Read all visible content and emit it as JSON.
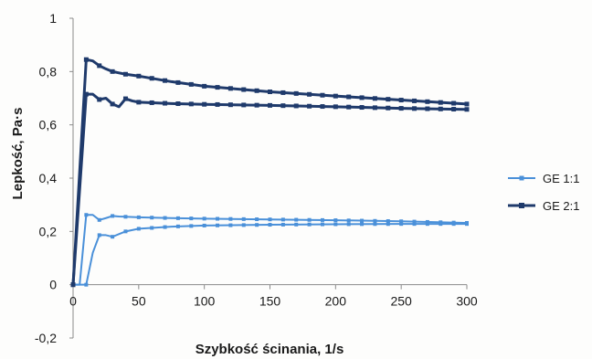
{
  "chart_data": {
    "type": "line",
    "xlabel": "Szybkość ścinania, 1/s",
    "ylabel": "Lepkość, Pa·s",
    "xlim": [
      0,
      300
    ],
    "ylim": [
      -0.2,
      1
    ],
    "x_ticks": [
      0,
      50,
      100,
      150,
      200,
      250,
      300
    ],
    "x_tick_labels": [
      "0",
      "50",
      "100",
      "150",
      "200",
      "250",
      "300"
    ],
    "y_ticks": [
      -0.2,
      0,
      0.2,
      0.4,
      0.6,
      0.8,
      1
    ],
    "y_tick_labels": [
      "-0,2",
      "0",
      "0,2",
      "0,4",
      "0,6",
      "0,8",
      "1"
    ],
    "grid": false,
    "legend_position": "right",
    "series": [
      {
        "name": "GE 1:1",
        "color": "#4a90d9",
        "curves": [
          [
            [
              0,
              0
            ],
            [
              5,
              0
            ],
            [
              10,
              0.262
            ],
            [
              15,
              0.262
            ],
            [
              20,
              0.243
            ],
            [
              25,
              0.25
            ],
            [
              30,
              0.258
            ],
            [
              35,
              0.256
            ],
            [
              40,
              0.255
            ],
            [
              50,
              0.253
            ],
            [
              75,
              0.25
            ],
            [
              100,
              0.248
            ],
            [
              150,
              0.245
            ],
            [
              200,
              0.242
            ],
            [
              250,
              0.238
            ],
            [
              300,
              0.232
            ]
          ],
          [
            [
              0,
              0
            ],
            [
              10,
              0
            ],
            [
              15,
              0.12
            ],
            [
              20,
              0.186
            ],
            [
              25,
              0.186
            ],
            [
              30,
              0.18
            ],
            [
              40,
              0.2
            ],
            [
              50,
              0.21
            ],
            [
              75,
              0.218
            ],
            [
              100,
              0.222
            ],
            [
              150,
              0.225
            ],
            [
              200,
              0.227
            ],
            [
              250,
              0.228
            ],
            [
              300,
              0.228
            ]
          ]
        ]
      },
      {
        "name": "GE 2:1",
        "color": "#1f3a6b",
        "curves": [
          [
            [
              0,
              0
            ],
            [
              10,
              0.845
            ],
            [
              15,
              0.84
            ],
            [
              20,
              0.822
            ],
            [
              25,
              0.81
            ],
            [
              30,
              0.8
            ],
            [
              35,
              0.795
            ],
            [
              40,
              0.79
            ],
            [
              50,
              0.783
            ],
            [
              75,
              0.762
            ],
            [
              100,
              0.745
            ],
            [
              150,
              0.724
            ],
            [
              200,
              0.708
            ],
            [
              250,
              0.693
            ],
            [
              300,
              0.678
            ]
          ],
          [
            [
              0,
              0
            ],
            [
              10,
              0.715
            ],
            [
              15,
              0.715
            ],
            [
              20,
              0.695
            ],
            [
              25,
              0.7
            ],
            [
              30,
              0.678
            ],
            [
              35,
              0.668
            ],
            [
              40,
              0.698
            ],
            [
              45,
              0.69
            ],
            [
              50,
              0.685
            ],
            [
              75,
              0.68
            ],
            [
              100,
              0.677
            ],
            [
              150,
              0.673
            ],
            [
              200,
              0.668
            ],
            [
              250,
              0.662
            ],
            [
              300,
              0.658
            ]
          ]
        ]
      }
    ]
  }
}
